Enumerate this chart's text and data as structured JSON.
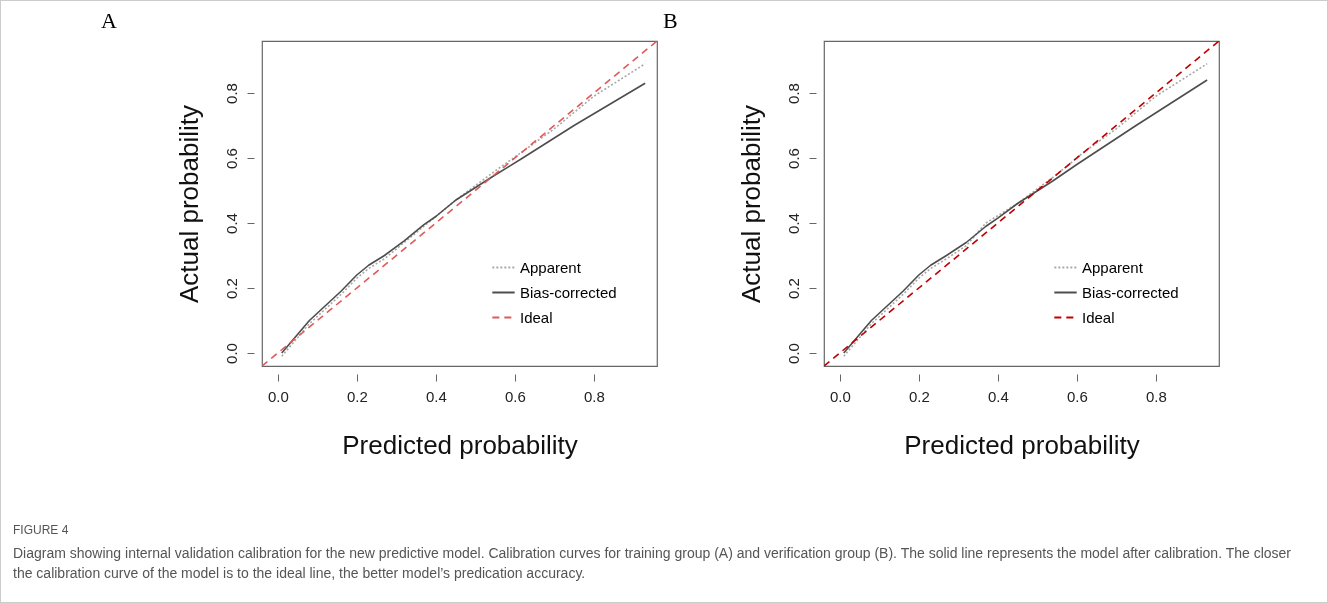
{
  "chart_data": [
    {
      "type": "line",
      "title": "A",
      "xlabel": "Predicted probability",
      "ylabel": "Actual probability",
      "xlim": [
        -0.04,
        0.96
      ],
      "ylim": [
        -0.04,
        0.96
      ],
      "xticks": [
        {
          "value": 0,
          "label": "0.0"
        },
        0.2,
        0.4,
        0.6,
        0.8
      ],
      "yticks": [
        {
          "value": 0,
          "label": "0.0"
        },
        0.2,
        0.4,
        0.6,
        0.8
      ],
      "legend": "bottom right",
      "series": [
        {
          "name": "Apparent",
          "color": "#a8a8a8",
          "line_style": "dotted",
          "x": [
            0.01,
            0.08,
            0.16,
            0.2,
            0.23,
            0.27,
            0.32,
            0.37,
            0.45,
            0.55,
            0.62,
            0.7,
            0.8,
            0.93
          ],
          "values": [
            -0.01,
            0.09,
            0.18,
            0.23,
            0.26,
            0.29,
            0.34,
            0.39,
            0.47,
            0.56,
            0.62,
            0.69,
            0.79,
            0.89
          ]
        },
        {
          "name": "Bias-corrected",
          "color": "#4d4d4d",
          "line_style": "solid",
          "x": [
            0.01,
            0.08,
            0.16,
            0.2,
            0.23,
            0.27,
            0.32,
            0.37,
            0.4,
            0.45,
            0.54,
            0.62,
            0.75,
            0.93
          ],
          "values": [
            0.0,
            0.1,
            0.19,
            0.24,
            0.27,
            0.3,
            0.345,
            0.395,
            0.42,
            0.47,
            0.54,
            0.6,
            0.7,
            0.83
          ]
        },
        {
          "name": "Ideal",
          "color": "#e05a5a",
          "line_style": "dashed",
          "x": [
            -0.04,
            0.96
          ],
          "values": [
            -0.04,
            0.96
          ]
        }
      ],
      "annotations": [
        "FIGURE 4",
        "Diagram showing internal validation calibration for the new predictive model. Calibration curves for training group (A) and verification group (B). The solid line represents the model after calibration. The closer the calibration curve of the model is to the ideal line, the better model’s predication accuracy."
      ]
    },
    {
      "type": "line",
      "title": "B",
      "xlabel": "Predicted probability",
      "ylabel": "Actual probability",
      "xlim": [
        -0.04,
        0.96
      ],
      "ylim": [
        -0.04,
        0.96
      ],
      "xticks": [
        {
          "value": 0,
          "label": "0.0"
        },
        0.2,
        0.4,
        0.6,
        0.8
      ],
      "yticks": [
        {
          "value": 0,
          "label": "0.0"
        },
        0.2,
        0.4,
        0.6,
        0.8
      ],
      "legend": "bottom right",
      "series": [
        {
          "name": "Apparent",
          "color": "#a8a8a8",
          "line_style": "dotted",
          "x": [
            0.01,
            0.08,
            0.16,
            0.2,
            0.23,
            0.27,
            0.32,
            0.37,
            0.45,
            0.55,
            0.62,
            0.7,
            0.8,
            0.93
          ],
          "values": [
            -0.01,
            0.09,
            0.18,
            0.23,
            0.26,
            0.29,
            0.33,
            0.4,
            0.46,
            0.55,
            0.62,
            0.69,
            0.79,
            0.89
          ]
        },
        {
          "name": "Bias-corrected",
          "color": "#4d4d4d",
          "line_style": "solid",
          "x": [
            0.01,
            0.08,
            0.16,
            0.2,
            0.23,
            0.27,
            0.32,
            0.37,
            0.4,
            0.45,
            0.54,
            0.6,
            0.75,
            0.93
          ],
          "values": [
            0.0,
            0.1,
            0.19,
            0.24,
            0.27,
            0.3,
            0.34,
            0.39,
            0.415,
            0.46,
            0.53,
            0.58,
            0.7,
            0.84
          ]
        },
        {
          "name": "Ideal",
          "color": "#c00000",
          "line_style": "dashed",
          "x": [
            -0.04,
            0.96
          ],
          "values": [
            -0.04,
            0.96
          ]
        }
      ]
    }
  ]
}
